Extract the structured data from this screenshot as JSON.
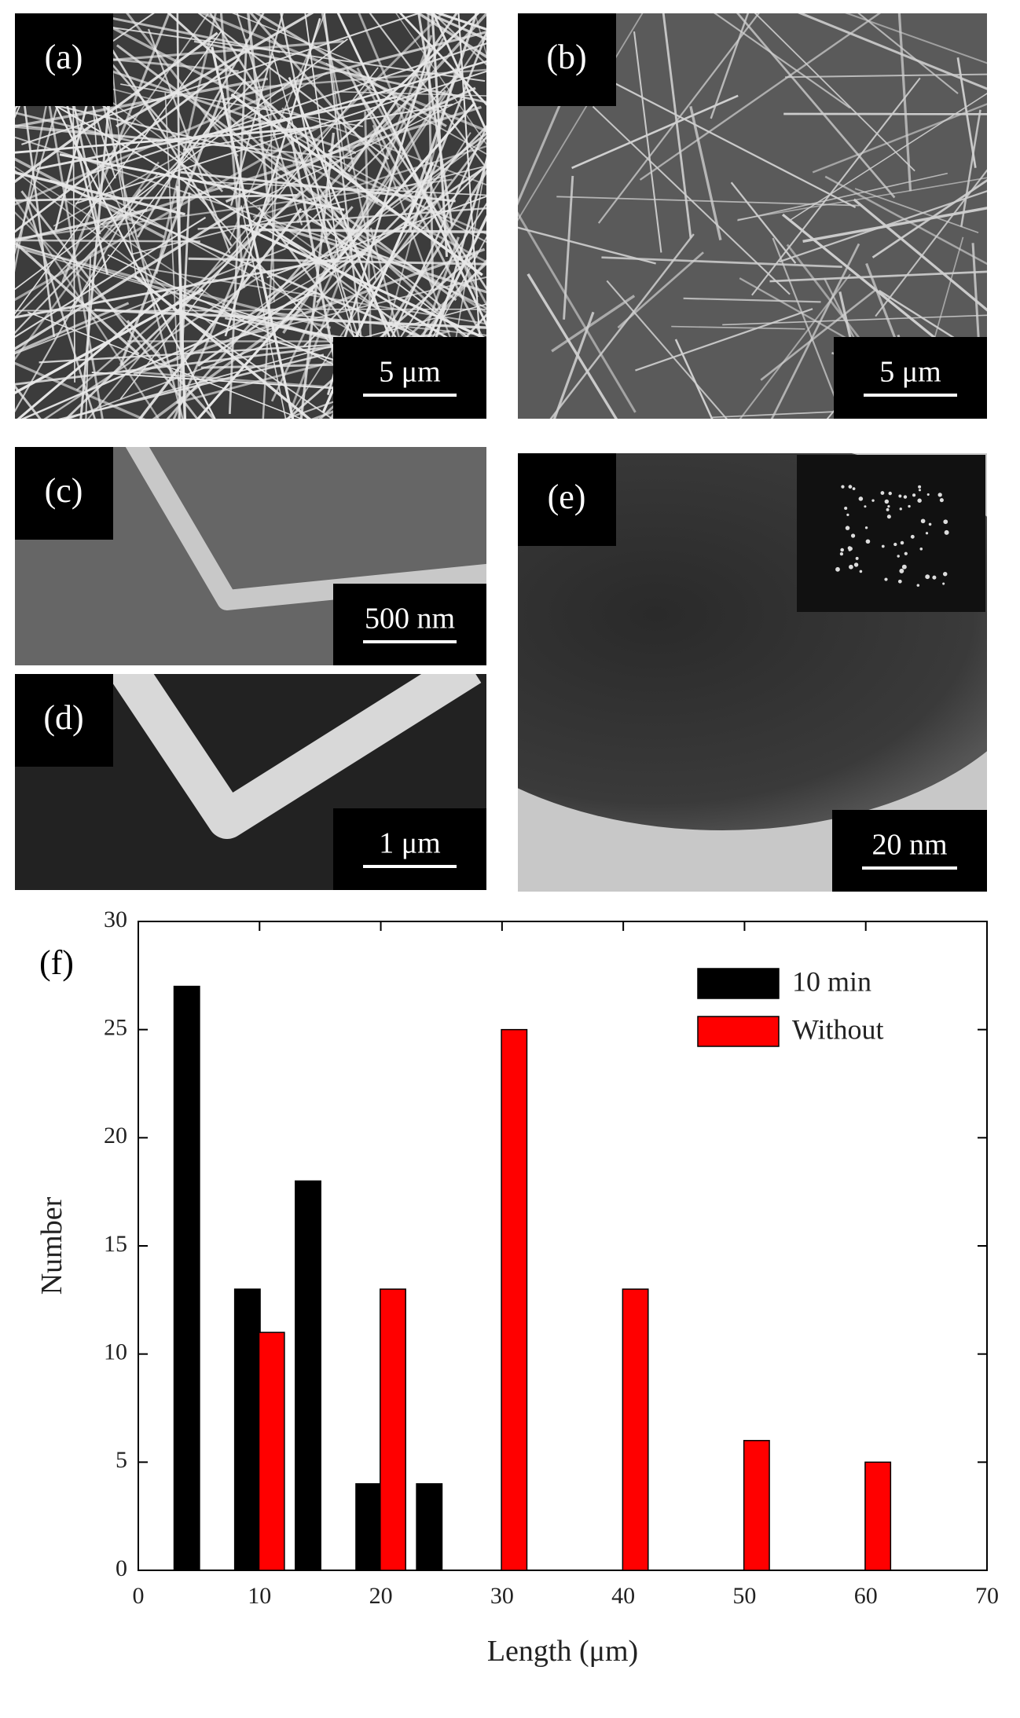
{
  "panels": [
    {
      "label": "(a)",
      "scale_bar": "5 μm"
    },
    {
      "label": "(b)",
      "scale_bar": "5 μm"
    },
    {
      "label": "(c)",
      "scale_bar": "500 nm"
    },
    {
      "label": "(d)",
      "scale_bar": "1 μm"
    },
    {
      "label": "(e)",
      "scale_bar": "20 nm"
    }
  ],
  "chart_data": {
    "type": "bar",
    "annotation": "(f)",
    "x_label": "Length (μm)",
    "y_label": "Number",
    "series": [
      {
        "name": "10 min",
        "color": "#000000",
        "x": [
          4,
          9,
          14,
          19,
          24
        ],
        "values": [
          27,
          13,
          18,
          4,
          4
        ]
      },
      {
        "name": "Without",
        "color": "#ff0000",
        "x": [
          11,
          21,
          31,
          41,
          51,
          61
        ],
        "values": [
          11,
          13,
          25,
          13,
          6,
          5
        ]
      }
    ],
    "xlim": [
      0,
      70
    ],
    "xticks": [
      0,
      10,
      20,
      30,
      40,
      50,
      60,
      70
    ],
    "ylim": [
      0,
      30
    ],
    "yticks": [
      0,
      5,
      10,
      15,
      20,
      25,
      30
    ],
    "legend": "upper right"
  }
}
